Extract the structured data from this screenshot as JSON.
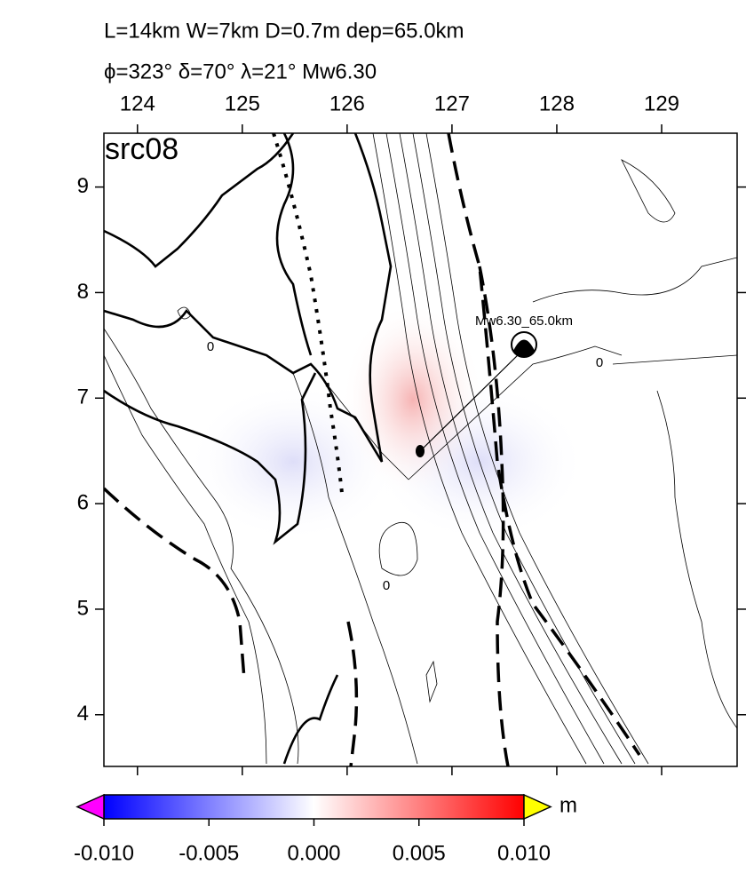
{
  "header": {
    "line1": "L=14km W=7km D=0.7m dep=65.0km",
    "line2": "ϕ=323° δ=70° λ=21° Mw6.30"
  },
  "map": {
    "panel_label": "src08",
    "xlim": [
      123.68,
      129.72
    ],
    "ylim": [
      3.51,
      9.51
    ],
    "xticks": [
      124,
      125,
      126,
      127,
      128,
      129
    ],
    "yticks": [
      4,
      5,
      6,
      7,
      8,
      9
    ],
    "event_label": "Mw6.30_65.0km",
    "contour_labels": [
      "0",
      "0",
      "0"
    ]
  },
  "colorbar": {
    "clim": [
      -0.01,
      0.01
    ],
    "unit": "m",
    "ticks": [
      {
        "value": -0.01,
        "label": "-0.010"
      },
      {
        "value": -0.005,
        "label": "-0.005"
      },
      {
        "value": 0,
        "label": "0.000"
      },
      {
        "value": 0.005,
        "label": "0.005"
      },
      {
        "value": 0.01,
        "label": "0.010"
      }
    ]
  }
}
